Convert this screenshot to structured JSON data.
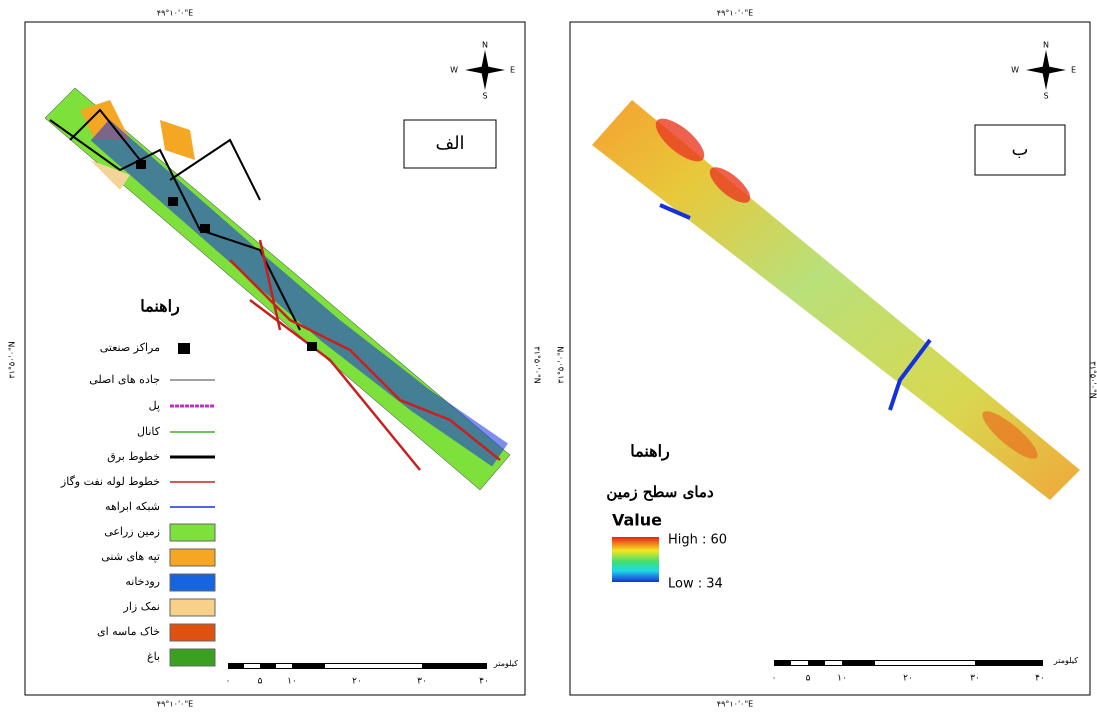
{
  "panels": [
    {
      "label": "الف",
      "coords": {
        "top": "۴۹°۱۰'۰\"E",
        "bottom": "۴۹°۱۰'۰\"E",
        "left": "۳۱°۵۰'۰\"N",
        "right": "۳۱°۵۰'۰\"N"
      },
      "compass": {
        "n": "N",
        "s": "S",
        "e": "E",
        "w": "W"
      },
      "legend": {
        "title": "راهنما",
        "items": [
          "مراکز صنعتی",
          "جاده های اصلی",
          "پل",
          "کانال",
          "خطوط برق",
          "خطوط لوله نفت وگاز",
          "شبکه ابراهه",
          "زمین زراعی",
          "تپه های شنی",
          "رودخانه",
          "نمک زار",
          "خاک ماسه ای",
          "باغ"
        ]
      },
      "scale": {
        "unit": "کیلومتر",
        "labels": [
          "۰",
          "۵",
          "۱۰",
          "۲۰",
          "۳۰",
          "۴۰"
        ]
      }
    },
    {
      "label": "ب",
      "coords": {
        "top": "۴۹°۱۰'۰\"E",
        "bottom": "۴۹°۱۰'۰\"E",
        "left": "۳۱°۵۰'۰\"N",
        "right": "۳۱°۵۰'۰\"N"
      },
      "compass": {
        "n": "N",
        "s": "S",
        "e": "E",
        "w": "W"
      },
      "legend": {
        "title": "راهنما",
        "subtitle": "دمای سطح زمین",
        "field": "Value",
        "high": "High : 60",
        "low": "Low : 34"
      },
      "scale": {
        "unit": "کیلومتر",
        "labels": [
          "۰",
          "۵",
          "۱۰",
          "۲۰",
          "۳۰",
          "۴۰"
        ]
      }
    }
  ]
}
